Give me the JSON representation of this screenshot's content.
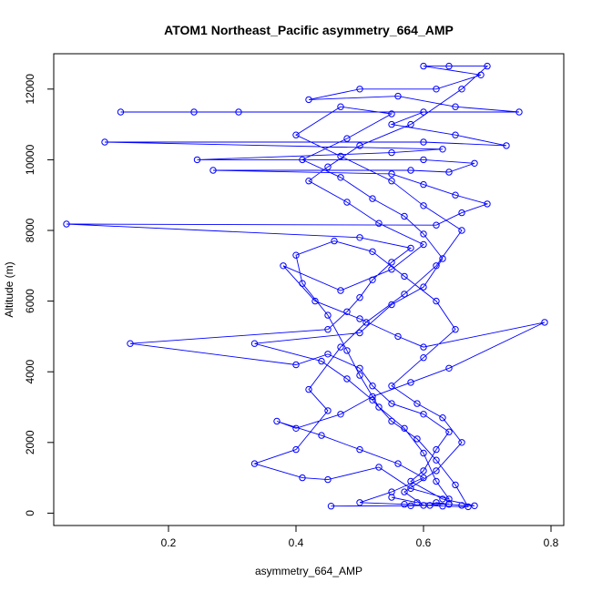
{
  "chart_data": {
    "type": "line",
    "title": "ATOM1 Northeast_Pacific asymmetry_664_AMP",
    "xlabel": "asymmetry_664_AMP",
    "ylabel": "Altitude (m)",
    "xlim": [
      0.02,
      0.82
    ],
    "ylim": [
      -350,
      13000
    ],
    "x_ticks": [
      0.2,
      0.4,
      0.6,
      0.8
    ],
    "x_tick_labels": [
      "0.2",
      "0.4",
      "0.6",
      "0.8"
    ],
    "y_ticks": [
      0,
      2000,
      4000,
      6000,
      8000,
      10000,
      12000
    ],
    "y_tick_labels": [
      "0",
      "2000",
      "4000",
      "6000",
      "8000",
      "10000",
      "12000"
    ],
    "marker": "open-circle",
    "grid": false,
    "series": [
      {
        "color": "#0000ff",
        "points": [
          [
            0.455,
            200
          ],
          [
            0.58,
            210
          ],
          [
            0.61,
            220
          ],
          [
            0.62,
            300
          ],
          [
            0.64,
            250
          ],
          [
            0.66,
            220
          ],
          [
            0.68,
            210
          ],
          [
            0.63,
            400
          ],
          [
            0.58,
            900
          ],
          [
            0.6,
            1200
          ],
          [
            0.62,
            1800
          ],
          [
            0.64,
            2300
          ],
          [
            0.6,
            2800
          ],
          [
            0.55,
            3100
          ],
          [
            0.52,
            3600
          ],
          [
            0.5,
            4100
          ],
          [
            0.45,
            4500
          ],
          [
            0.4,
            4200
          ],
          [
            0.14,
            4800
          ],
          [
            0.45,
            5200
          ],
          [
            0.48,
            5700
          ],
          [
            0.5,
            6100
          ],
          [
            0.52,
            6600
          ],
          [
            0.55,
            7100
          ],
          [
            0.58,
            7500
          ],
          [
            0.5,
            7800
          ],
          [
            0.04,
            8180
          ],
          [
            0.62,
            8150
          ],
          [
            0.66,
            8500
          ],
          [
            0.7,
            8750
          ],
          [
            0.65,
            9000
          ],
          [
            0.6,
            9300
          ],
          [
            0.55,
            9600
          ],
          [
            0.27,
            9700
          ],
          [
            0.58,
            9700
          ],
          [
            0.64,
            9650
          ],
          [
            0.68,
            9900
          ],
          [
            0.6,
            10000
          ],
          [
            0.245,
            10000
          ],
          [
            0.55,
            10200
          ],
          [
            0.63,
            10300
          ],
          [
            0.1,
            10500
          ],
          [
            0.6,
            10500
          ],
          [
            0.73,
            10400
          ],
          [
            0.65,
            10700
          ],
          [
            0.55,
            11000
          ],
          [
            0.6,
            11350
          ],
          [
            0.125,
            11350
          ],
          [
            0.24,
            11350
          ],
          [
            0.31,
            11350
          ],
          [
            0.75,
            11350
          ],
          [
            0.65,
            11500
          ],
          [
            0.56,
            11800
          ],
          [
            0.42,
            11700
          ],
          [
            0.5,
            12000
          ],
          [
            0.62,
            12000
          ],
          [
            0.69,
            12400
          ],
          [
            0.6,
            12650
          ],
          [
            0.64,
            12650
          ],
          [
            0.7,
            12650
          ],
          [
            0.66,
            12000
          ],
          [
            0.58,
            11000
          ],
          [
            0.5,
            10400
          ],
          [
            0.45,
            9800
          ],
          [
            0.42,
            9400
          ],
          [
            0.48,
            8800
          ],
          [
            0.53,
            8200
          ],
          [
            0.6,
            7600
          ],
          [
            0.55,
            6900
          ],
          [
            0.47,
            6300
          ],
          [
            0.38,
            7000
          ],
          [
            0.43,
            6000
          ],
          [
            0.5,
            5500
          ],
          [
            0.56,
            5000
          ],
          [
            0.6,
            4700
          ],
          [
            0.79,
            5400
          ],
          [
            0.64,
            4100
          ],
          [
            0.58,
            3700
          ],
          [
            0.52,
            3300
          ],
          [
            0.47,
            2800
          ],
          [
            0.4,
            2400
          ],
          [
            0.37,
            2600
          ],
          [
            0.44,
            2200
          ],
          [
            0.5,
            1800
          ],
          [
            0.56,
            1400
          ],
          [
            0.6,
            1000
          ],
          [
            0.55,
            600
          ],
          [
            0.5,
            300
          ],
          [
            0.57,
            250
          ],
          [
            0.63,
            200
          ],
          [
            0.67,
            180
          ],
          [
            0.65,
            800
          ],
          [
            0.62,
            1500
          ],
          [
            0.59,
            2100
          ],
          [
            0.55,
            2600
          ],
          [
            0.52,
            3200
          ],
          [
            0.48,
            3800
          ],
          [
            0.44,
            4300
          ],
          [
            0.335,
            4800
          ],
          [
            0.5,
            5100
          ],
          [
            0.55,
            5900
          ],
          [
            0.6,
            6400
          ],
          [
            0.63,
            7200
          ],
          [
            0.6,
            7900
          ],
          [
            0.57,
            8400
          ],
          [
            0.52,
            8900
          ],
          [
            0.47,
            9500
          ],
          [
            0.41,
            10000
          ],
          [
            0.48,
            10600
          ],
          [
            0.55,
            11300
          ],
          [
            0.47,
            11500
          ],
          [
            0.4,
            10700
          ],
          [
            0.47,
            10100
          ],
          [
            0.55,
            9400
          ],
          [
            0.6,
            8700
          ],
          [
            0.66,
            8000
          ],
          [
            0.62,
            7000
          ],
          [
            0.57,
            6200
          ],
          [
            0.51,
            5400
          ],
          [
            0.47,
            4700
          ],
          [
            0.42,
            3500
          ],
          [
            0.45,
            2900
          ],
          [
            0.4,
            1800
          ],
          [
            0.335,
            1400
          ],
          [
            0.41,
            1000
          ],
          [
            0.45,
            950
          ],
          [
            0.53,
            1300
          ],
          [
            0.58,
            700
          ],
          [
            0.64,
            400
          ],
          [
            0.62,
            900
          ],
          [
            0.6,
            1700
          ],
          [
            0.57,
            2400
          ],
          [
            0.53,
            3000
          ],
          [
            0.5,
            3900
          ],
          [
            0.48,
            4600
          ],
          [
            0.45,
            5600
          ],
          [
            0.41,
            6500
          ],
          [
            0.4,
            7300
          ],
          [
            0.46,
            7700
          ],
          [
            0.52,
            7400
          ],
          [
            0.57,
            6700
          ],
          [
            0.62,
            6000
          ],
          [
            0.65,
            5200
          ],
          [
            0.6,
            4400
          ],
          [
            0.55,
            3600
          ],
          [
            0.59,
            3100
          ],
          [
            0.63,
            2700
          ],
          [
            0.66,
            2000
          ],
          [
            0.62,
            1200
          ],
          [
            0.57,
            600
          ],
          [
            0.6,
            220
          ],
          [
            0.64,
            260
          ],
          [
            0.59,
            300
          ],
          [
            0.55,
            450
          ]
        ]
      }
    ]
  }
}
